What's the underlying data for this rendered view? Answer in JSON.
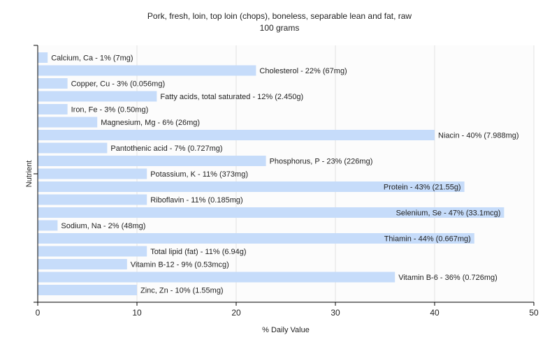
{
  "colors": {
    "bar": "#c6dcfa",
    "plot_background": "#fcfcfc",
    "grid": "#e2e2e2",
    "axis": "#000000"
  },
  "chart_data": {
    "type": "bar",
    "orientation": "horizontal",
    "title": "Pork, fresh, loin, top loin (chops), boneless, separable lean and fat, raw",
    "subtitle": "100 grams",
    "xlabel": "% Daily Value",
    "ylabel": "Nutrient",
    "xlim": [
      0,
      50
    ],
    "xticks": [
      0,
      10,
      20,
      30,
      40,
      50
    ],
    "grid": true,
    "categories": [
      "Calcium, Ca",
      "Cholesterol",
      "Copper, Cu",
      "Fatty acids, total saturated",
      "Iron, Fe",
      "Magnesium, Mg",
      "Niacin",
      "Pantothenic acid",
      "Phosphorus, P",
      "Potassium, K",
      "Protein",
      "Riboflavin",
      "Selenium, Se",
      "Sodium, Na",
      "Thiamin",
      "Total lipid (fat)",
      "Vitamin B-12",
      "Vitamin B-6",
      "Zinc, Zn"
    ],
    "values": [
      1,
      22,
      3,
      12,
      3,
      6,
      40,
      7,
      23,
      11,
      43,
      11,
      47,
      2,
      44,
      11,
      9,
      36,
      10
    ],
    "labels": [
      "Calcium, Ca - 1% (7mg)",
      "Cholesterol - 22% (67mg)",
      "Copper, Cu - 3% (0.056mg)",
      "Fatty acids, total saturated - 12% (2.450g)",
      "Iron, Fe - 3% (0.50mg)",
      "Magnesium, Mg - 6% (26mg)",
      "Niacin - 40% (7.988mg)",
      "Pantothenic acid - 7% (0.727mg)",
      "Phosphorus, P - 23% (226mg)",
      "Potassium, K - 11% (373mg)",
      "Protein - 43% (21.55g)",
      "Riboflavin - 11% (0.185mg)",
      "Selenium, Se - 47% (33.1mcg)",
      "Sodium, Na - 2% (48mg)",
      "Thiamin - 44% (0.667mg)",
      "Total lipid (fat) - 11% (6.94g)",
      "Vitamin B-12 - 9% (0.53mcg)",
      "Vitamin B-6 - 36% (0.726mg)",
      "Zinc, Zn - 10% (1.55mg)"
    ]
  }
}
